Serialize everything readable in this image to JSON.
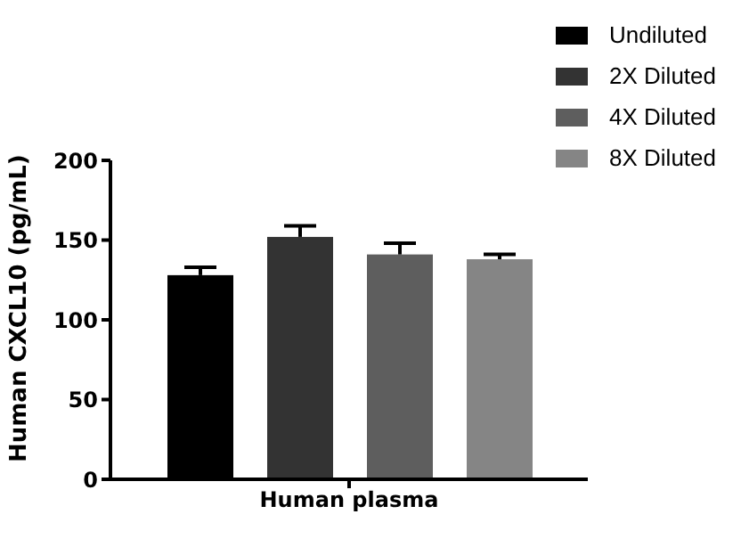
{
  "chart_data": {
    "type": "bar",
    "categories": [
      "Human plasma"
    ],
    "ylabel": "Human CXCL10 (pg/mL)",
    "ylim": [
      0,
      200
    ],
    "yticks": [
      0,
      50,
      100,
      150,
      200
    ],
    "legend": "top right",
    "grid": false,
    "series": [
      {
        "name": "Undiluted",
        "color": "#000000",
        "values": [
          128
        ],
        "errors": [
          5
        ]
      },
      {
        "name": "2X Diluted",
        "color": "#333333",
        "values": [
          152
        ],
        "errors": [
          7
        ]
      },
      {
        "name": "4X Diluted",
        "color": "#5e5e5e",
        "values": [
          141
        ],
        "errors": [
          7
        ]
      },
      {
        "name": "8X Diluted",
        "color": "#858585",
        "values": [
          138
        ],
        "errors": [
          3
        ]
      }
    ]
  }
}
